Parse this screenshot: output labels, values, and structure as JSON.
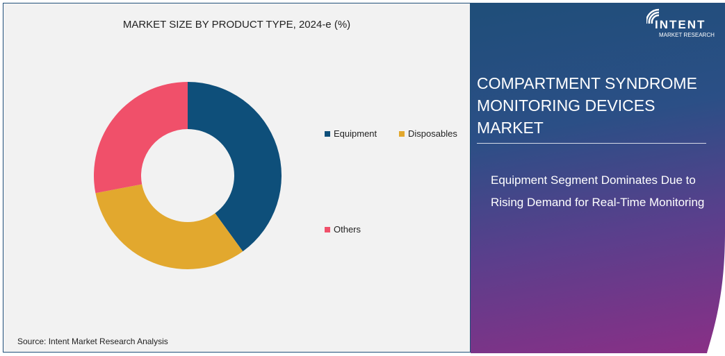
{
  "chart_data": {
    "type": "donut",
    "title": "MARKET SIZE BY PRODUCT TYPE, 2024-e (%)",
    "categories": [
      "Equipment",
      "Disposables",
      "Others"
    ],
    "values": [
      40,
      32,
      28
    ],
    "colors": [
      "#0e4f7a",
      "#e2a82e",
      "#f0506a"
    ],
    "legend_placement": "right"
  },
  "source": "Source: Intent Market Research Analysis",
  "logo": {
    "brand": "INTENT",
    "sub": "MARKET RESEARCH",
    "tm": "™"
  },
  "report_title": "COMPARTMENT SYNDROME MONITORING DEVICES MARKET",
  "insight": "Equipment Segment Dominates Due to Rising Demand for Real-Time Monitoring"
}
